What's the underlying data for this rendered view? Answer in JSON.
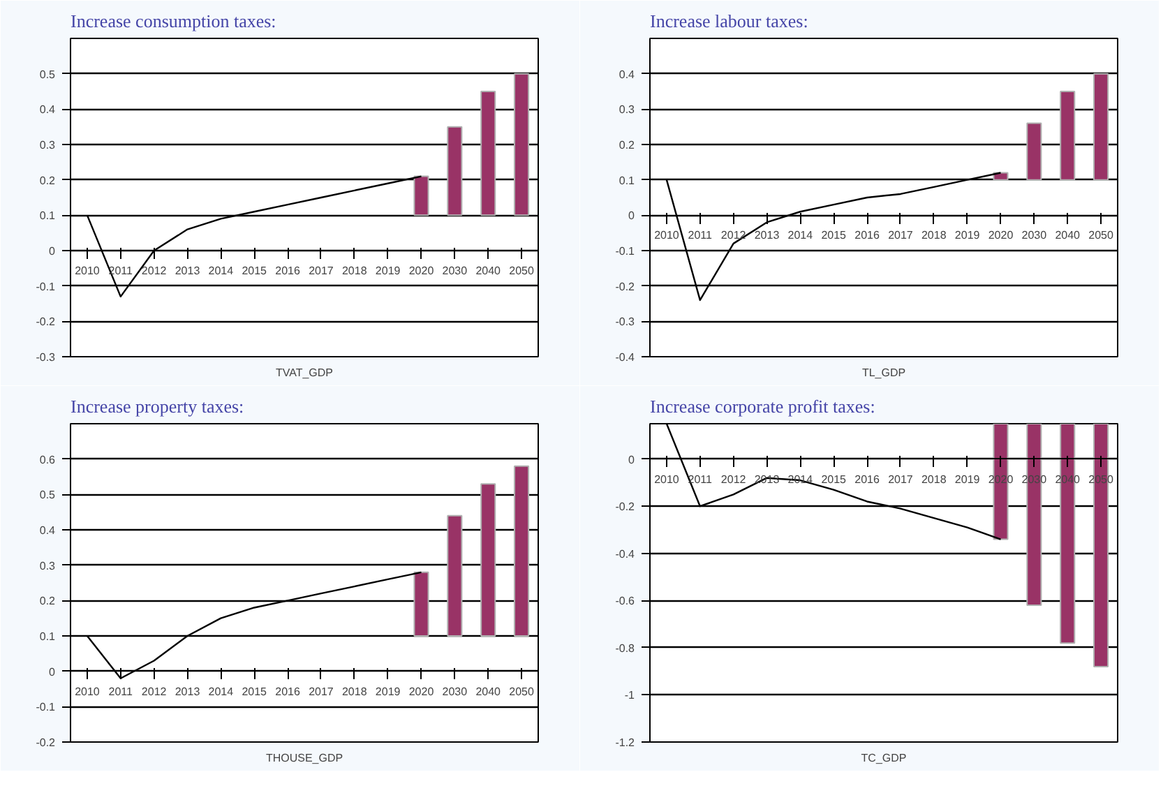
{
  "chart_data": [
    {
      "type": "bar",
      "title": "Increase consumption taxes:",
      "xlabel": "TVAT_GDP",
      "categories": [
        "2010",
        "2011",
        "2012",
        "2013",
        "2014",
        "2015",
        "2016",
        "2017",
        "2018",
        "2019",
        "2020",
        "2030",
        "2040",
        "2050"
      ],
      "ylim": [
        -0.3,
        0.6
      ],
      "yticks": [
        -0.3,
        -0.2,
        -0.1,
        0,
        0.1,
        0.2,
        0.3,
        0.4,
        0.5
      ],
      "grid": "y",
      "series": [
        {
          "color": "#993366",
          "values": [
            null,
            null,
            null,
            null,
            null,
            null,
            null,
            null,
            null,
            null,
            0.11,
            0.25,
            0.35,
            0.4
          ],
          "base": [
            null,
            null,
            null,
            null,
            null,
            null,
            null,
            null,
            null,
            null,
            0.1,
            0.1,
            0.1,
            0.1
          ]
        },
        {
          "type": "line",
          "color": "#000000",
          "values": [
            0.1,
            -0.13,
            0.0,
            0.06,
            0.09,
            0.11,
            0.13,
            0.15,
            0.17,
            0.19,
            0.21,
            null,
            null,
            null
          ]
        }
      ]
    },
    {
      "type": "bar",
      "title": "Increase labour taxes:",
      "xlabel": "TL_GDP",
      "categories": [
        "2010",
        "2011",
        "2012",
        "2013",
        "2014",
        "2015",
        "2016",
        "2017",
        "2018",
        "2019",
        "2020",
        "2030",
        "2040",
        "2050"
      ],
      "ylim": [
        -0.4,
        0.5
      ],
      "yticks": [
        -0.4,
        -0.3,
        -0.2,
        -0.1,
        0,
        0.1,
        0.2,
        0.3,
        0.4
      ],
      "grid": "y",
      "series": [
        {
          "color": "#993366",
          "values": [
            null,
            null,
            null,
            null,
            null,
            null,
            null,
            null,
            null,
            null,
            0.02,
            0.16,
            0.25,
            0.3
          ],
          "base": [
            null,
            null,
            null,
            null,
            null,
            null,
            null,
            null,
            null,
            null,
            0.1,
            0.1,
            0.1,
            0.1
          ]
        },
        {
          "type": "line",
          "color": "#000000",
          "values": [
            0.1,
            -0.24,
            -0.08,
            -0.02,
            0.01,
            0.03,
            0.05,
            0.06,
            0.08,
            0.1,
            0.12,
            null,
            null,
            null
          ]
        }
      ]
    },
    {
      "type": "bar",
      "title": "Increase property taxes:",
      "xlabel": "THOUSE_GDP",
      "categories": [
        "2010",
        "2011",
        "2012",
        "2013",
        "2014",
        "2015",
        "2016",
        "2017",
        "2018",
        "2019",
        "2020",
        "2030",
        "2040",
        "2050"
      ],
      "ylim": [
        -0.2,
        0.7
      ],
      "yticks": [
        -0.2,
        -0.1,
        0,
        0.1,
        0.2,
        0.3,
        0.4,
        0.5,
        0.6
      ],
      "grid": "y",
      "series": [
        {
          "color": "#993366",
          "values": [
            null,
            null,
            null,
            null,
            null,
            null,
            null,
            null,
            null,
            null,
            0.18,
            0.34,
            0.43,
            0.48
          ],
          "base": [
            null,
            null,
            null,
            null,
            null,
            null,
            null,
            null,
            null,
            null,
            0.1,
            0.1,
            0.1,
            0.1
          ]
        },
        {
          "type": "line",
          "color": "#000000",
          "values": [
            0.1,
            -0.02,
            0.03,
            0.1,
            0.15,
            0.18,
            0.2,
            0.22,
            0.24,
            0.26,
            0.28,
            null,
            null,
            null
          ]
        }
      ]
    },
    {
      "type": "bar",
      "title": "Increase corporate profit taxes:",
      "xlabel": "TC_GDP",
      "categories": [
        "2010",
        "2011",
        "2012",
        "2013",
        "2014",
        "2015",
        "2016",
        "2017",
        "2018",
        "2019",
        "2020",
        "2030",
        "2040",
        "2050"
      ],
      "ylim": [
        -1.2,
        0.15
      ],
      "yticks": [
        -1.2,
        -1,
        -0.8,
        -0.6,
        -0.4,
        -0.2,
        0
      ],
      "grid": "y",
      "series": [
        {
          "color": "#993366",
          "values": [
            null,
            null,
            null,
            null,
            null,
            null,
            null,
            null,
            null,
            null,
            -0.49,
            -0.77,
            -0.93,
            -1.03
          ],
          "base": [
            null,
            null,
            null,
            null,
            null,
            null,
            null,
            null,
            null,
            null,
            0.15,
            0.15,
            0.15,
            0.15
          ]
        },
        {
          "type": "line",
          "color": "#000000",
          "values": [
            0.15,
            -0.2,
            -0.15,
            -0.08,
            -0.09,
            -0.13,
            -0.18,
            -0.21,
            -0.25,
            -0.29,
            -0.34,
            null,
            null,
            null
          ]
        }
      ]
    }
  ]
}
